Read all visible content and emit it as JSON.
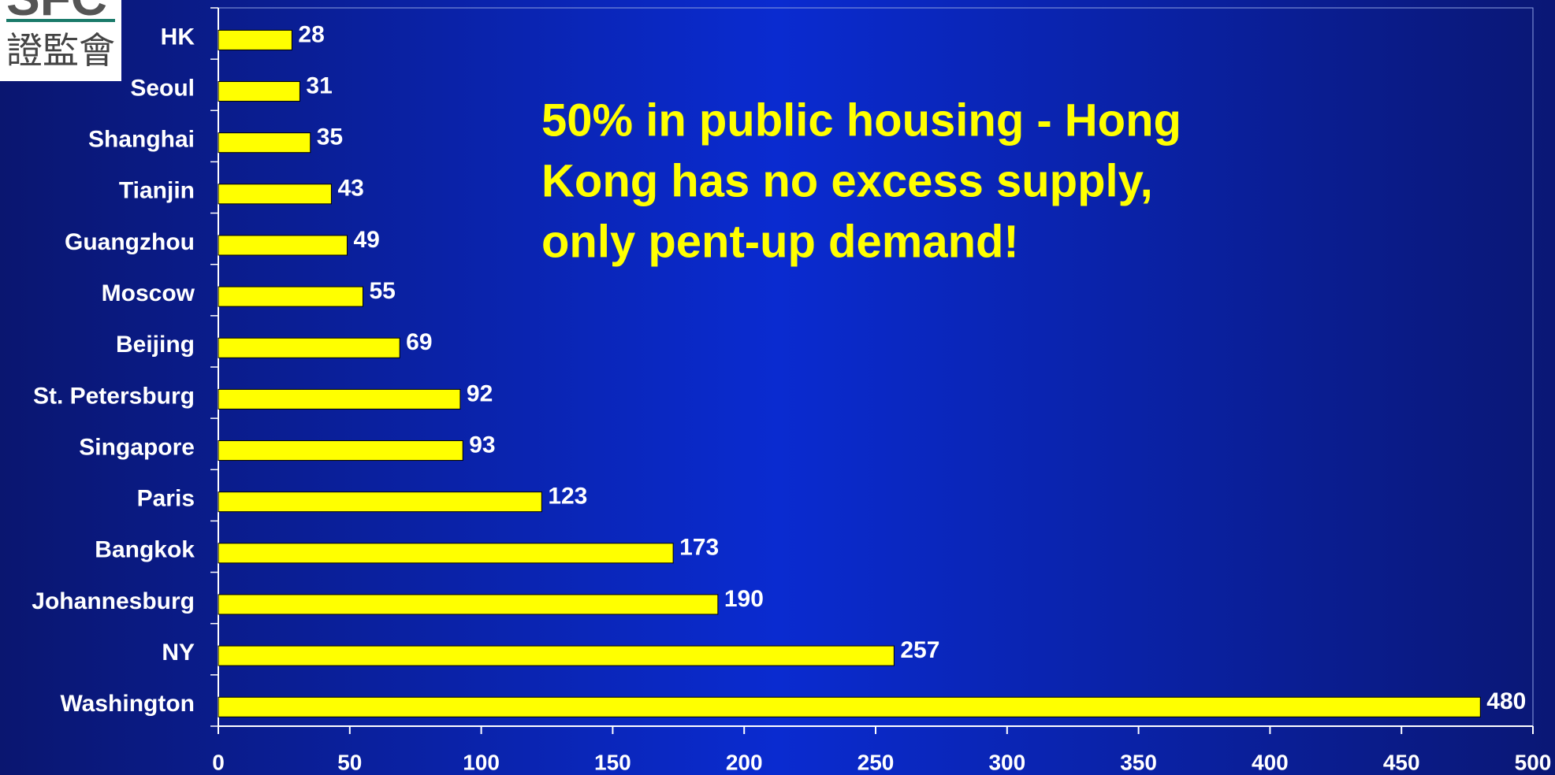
{
  "chart_data": {
    "type": "barh",
    "logo": {
      "name": "SFC",
      "chinese": "證監會"
    },
    "annotation": [
      "50% in public housing - Hong",
      "Kong has no excess supply,",
      "only pent-up demand!"
    ],
    "categories": [
      "HK",
      "Seoul",
      "Shanghai",
      "Tianjin",
      "Guangzhou",
      "Moscow",
      "Beijing",
      "St. Petersburg",
      "Singapore",
      "Paris",
      "Bangkok",
      "Johannesburg",
      "NY",
      "Washington"
    ],
    "values": [
      28,
      31,
      35,
      43,
      49,
      55,
      69,
      92,
      93,
      123,
      173,
      190,
      257,
      480
    ],
    "color": "#ffff00",
    "xlim": [
      0,
      500
    ],
    "xticks": [
      0,
      50,
      100,
      150,
      200,
      250,
      300,
      350,
      400,
      450,
      500
    ]
  }
}
